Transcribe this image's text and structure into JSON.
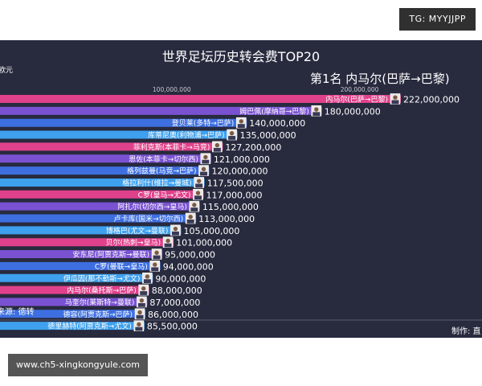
{
  "watermark_top": "TG: MYYJJPP",
  "watermark_bottom": "www.ch5-xingkongyule.com",
  "chart_data": {
    "type": "bar",
    "orientation": "horizontal",
    "title": "世界足坛历史转会费TOP20",
    "unit_label": "欧元",
    "highlight": "第1名 内马尔(巴萨→巴黎)",
    "xlim": [
      0,
      225000000
    ],
    "xticks": [
      100000000,
      200000000
    ],
    "xtick_labels": [
      "100,000,000",
      "200,000,000"
    ],
    "grid": false,
    "source": "来源: 德转",
    "producer": "制作: 直",
    "colors": [
      "#e0418b",
      "#7a52d1",
      "#3d6fe0",
      "#3ea0ee"
    ],
    "categories": [
      "内马尔(巴萨→巴黎)",
      "姆巴佩(摩纳哥→巴黎)",
      "登贝莱(多特→巴萨)",
      "库蒂尼奥(利物浦→巴萨)",
      "菲利克斯(本菲卡→马竞)",
      "恩佐(本菲卡→切尔西)",
      "格列兹曼(马竞→巴萨)",
      "格拉利什(维拉→曼城)",
      "C罗(皇马→尤文)",
      "阿扎尔(切尔西→皇马)",
      "卢卡库(国米→切尔西)",
      "博格巴(尤文→曼联)",
      "贝尔(热刺→皇马)",
      "安东尼(阿贾克斯→曼联)",
      "C罗(曼联→皇马)",
      "伊瓜因(那不勒斯→尤文)",
      "内马尔(桑托斯→巴萨)",
      "马奎尔(莱斯特→曼联)",
      "德容(阿贾克斯→巴萨)",
      "德里赫特(阿贾克斯→尤文)"
    ],
    "values": [
      222000000,
      180000000,
      140000000,
      135000000,
      127200000,
      121000000,
      120000000,
      117500000,
      117000000,
      115000000,
      113000000,
      105000000,
      101000000,
      95000000,
      94000000,
      90000000,
      88000000,
      87000000,
      86000000,
      85500000
    ],
    "value_labels": [
      "222,000,000",
      "180,000,000",
      "140,000,000",
      "135,000,000",
      "127,200,000",
      "121,000,000",
      "120,000,000",
      "117,500,000",
      "117,000,000",
      "115,000,000",
      "113,000,000",
      "105,000,000",
      "101,000,000",
      "95,000,000",
      "94,000,000",
      "90,000,000",
      "88,000,000",
      "87,000,000",
      "86,000,000",
      "85,500,000"
    ]
  }
}
